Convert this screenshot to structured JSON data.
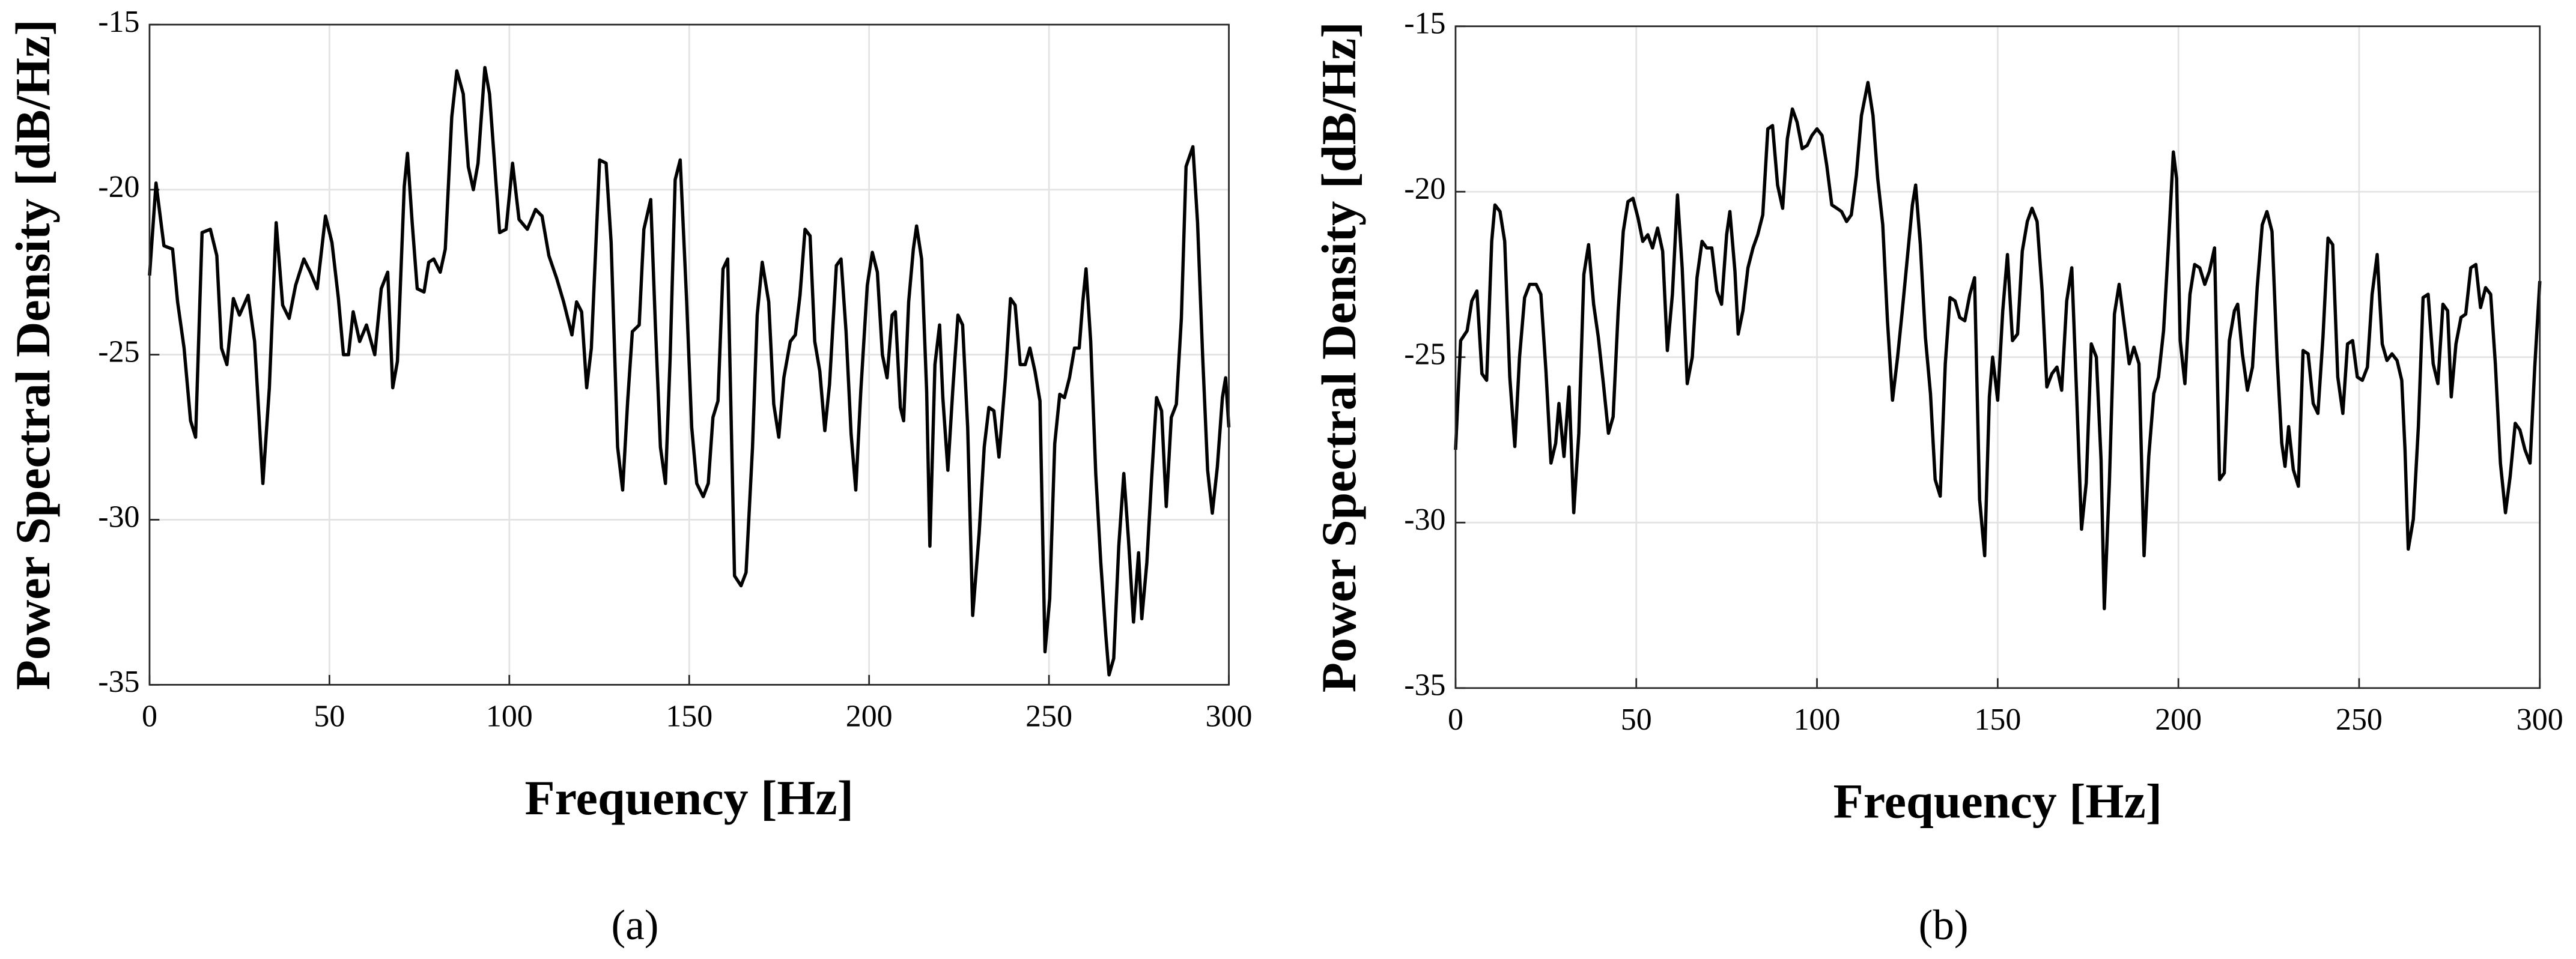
{
  "chart_data": [
    {
      "type": "line",
      "caption": "(a)",
      "xlabel": "Frequency [Hz]",
      "ylabel": "Power Spectral Density [dB/Hz]",
      "color": "#000000",
      "grid": true,
      "xlim": [
        0,
        300
      ],
      "xticks": [
        0,
        50,
        100,
        150,
        200,
        250,
        300
      ],
      "ylim": [
        -35,
        -15
      ],
      "yticks": [
        -35,
        -30,
        -25,
        -20,
        -15
      ],
      "x": [
        0,
        1.8,
        4,
        6.4,
        7.8,
        9.6,
        11.4,
        12.8,
        14.6,
        16.9,
        18.7,
        20,
        21.5,
        23.3,
        25,
        27.4,
        29.2,
        31.5,
        33.3,
        35.2,
        37,
        38.8,
        40.6,
        42.9,
        44.7,
        46.6,
        48.9,
        50.7,
        52.5,
        53.9,
        55.3,
        56.6,
        58.4,
        60.3,
        62.6,
        64.4,
        66.2,
        67.6,
        68.9,
        70.8,
        71.7,
        73,
        74.4,
        76.3,
        77.6,
        79,
        80.8,
        82.2,
        84,
        85.4,
        87.2,
        88.6,
        90,
        91.3,
        93.2,
        94.5,
        95.9,
        97.3,
        99.1,
        100.9,
        102.7,
        105,
        107.3,
        109.1,
        111,
        113.2,
        115.1,
        117.4,
        118.7,
        120.1,
        121.5,
        122.8,
        125.1,
        126.9,
        128.3,
        130.1,
        131.5,
        132.9,
        134.2,
        136.1,
        137.4,
        139.3,
        140.6,
        142,
        143.4,
        144.7,
        146.1,
        147.5,
        149.3,
        150.7,
        152.1,
        153.9,
        155.3,
        156.6,
        158,
        159.4,
        160.7,
        162.6,
        164.4,
        165.8,
        167.6,
        168.9,
        170.3,
        172.1,
        173.5,
        174.9,
        176.3,
        178.1,
        179.5,
        180.8,
        182.2,
        183.6,
        184.9,
        186.3,
        187.7,
        189,
        190.9,
        192.2,
        193.6,
        195,
        196.3,
        197.7,
        199.5,
        200.9,
        202.3,
        203.7,
        205,
        206.4,
        207.3,
        208.7,
        209.6,
        211,
        212.3,
        213.2,
        214.6,
        216,
        216.9,
        218.3,
        219.6,
        220.5,
        221.9,
        223.3,
        224.7,
        226,
        227.4,
        228.8,
        230.6,
        232,
        233.3,
        234.7,
        236.1,
        237.9,
        239.3,
        240.6,
        242,
        243.4,
        244.7,
        246.1,
        247.5,
        248.9,
        250.2,
        251.6,
        253,
        254.3,
        255.7,
        257.1,
        258.4,
        259.4,
        260.3,
        261.6,
        263,
        264.4,
        265.8,
        266.7,
        268,
        269.4,
        270.8,
        272.1,
        273.5,
        274.9,
        275.8,
        277.2,
        278.5,
        279.9,
        281.3,
        282.6,
        284,
        285.4,
        286.8,
        288.1,
        290,
        291.3,
        292.7,
        294.1,
        295.4,
        296.8,
        298.2,
        299.1,
        300
      ],
      "values": [
        -22.6,
        -19.8,
        -21.7,
        -21.8,
        -23.4,
        -24.8,
        -27,
        -27.5,
        -21.3,
        -21.2,
        -22,
        -24.8,
        -25.3,
        -23.3,
        -23.8,
        -23.2,
        -24.6,
        -28.9,
        -26,
        -21,
        -23.5,
        -23.9,
        -22.9,
        -22.1,
        -22.5,
        -23,
        -20.8,
        -21.6,
        -23.3,
        -25,
        -25,
        -23.7,
        -24.6,
        -24.1,
        -25,
        -23,
        -22.5,
        -26,
        -25.2,
        -19.9,
        -18.9,
        -21,
        -23,
        -23.1,
        -22.2,
        -22.1,
        -22.5,
        -21.8,
        -17.8,
        -16.4,
        -17.1,
        -19.3,
        -20,
        -19.2,
        -16.3,
        -17.1,
        -19.2,
        -21.3,
        -21.2,
        -19.2,
        -20.9,
        -21.2,
        -20.6,
        -20.8,
        -22,
        -22.7,
        -23.4,
        -24.4,
        -23.4,
        -23.7,
        -26,
        -24.8,
        -19.1,
        -19.2,
        -21.6,
        -27.8,
        -29.1,
        -26.4,
        -24.3,
        -24.1,
        -21.2,
        -20.3,
        -24.1,
        -27.8,
        -28.9,
        -25.1,
        -19.7,
        -19.1,
        -23.4,
        -27.2,
        -28.9,
        -29.3,
        -28.9,
        -26.9,
        -26.4,
        -22.4,
        -22.1,
        -31.7,
        -32,
        -31.6,
        -27.8,
        -23.8,
        -22.2,
        -23.4,
        -26.5,
        -27.5,
        -25.7,
        -24.6,
        -24.4,
        -23.2,
        -21.2,
        -21.4,
        -24.6,
        -25.5,
        -27.3,
        -25.9,
        -22.3,
        -22.1,
        -24.3,
        -27.4,
        -29.1,
        -26.1,
        -22.9,
        -21.9,
        -22.5,
        -25,
        -25.7,
        -23.8,
        -23.7,
        -26.6,
        -27,
        -23.4,
        -21.8,
        -21.1,
        -22.1,
        -26.1,
        -30.8,
        -25.3,
        -24.1,
        -26.3,
        -28.5,
        -26,
        -23.8,
        -24.1,
        -27.2,
        -32.9,
        -30.4,
        -27.8,
        -26.6,
        -26.7,
        -28.1,
        -25.7,
        -23.3,
        -23.5,
        -25.3,
        -25.3,
        -24.8,
        -25.5,
        -26.4,
        -34,
        -32.4,
        -27.7,
        -26.2,
        -26.3,
        -25.7,
        -24.8,
        -24.8,
        -23.4,
        -22.4,
        -24.6,
        -28.6,
        -31.3,
        -33.5,
        -34.7,
        -34.2,
        -30.8,
        -28.6,
        -30.6,
        -33.1,
        -31,
        -33,
        -31.3,
        -28.8,
        -26.3,
        -26.7,
        -29.6,
        -26.9,
        -26.5,
        -23.9,
        -19.3,
        -18.7,
        -21,
        -25,
        -28.5,
        -29.8,
        -28.4,
        -26.3,
        -25.7,
        -27.2
      ]
    },
    {
      "type": "line",
      "caption": "(b)",
      "xlabel": "Frequency [Hz]",
      "ylabel": "Power Spectral Density [dB/Hz]",
      "color": "#000000",
      "grid": true,
      "xlim": [
        0,
        300
      ],
      "xticks": [
        0,
        50,
        100,
        150,
        200,
        250,
        300
      ],
      "ylim": [
        -35,
        -15
      ],
      "yticks": [
        -35,
        -30,
        -25,
        -20,
        -15
      ],
      "x": [
        0,
        1.4,
        3.2,
        4.5,
        5.9,
        7.3,
        8.6,
        10,
        10.9,
        12.3,
        13.6,
        15,
        16.4,
        17.7,
        19.1,
        20.5,
        22.3,
        23.6,
        25,
        26.4,
        27.7,
        28.6,
        30,
        31.4,
        32.7,
        34.1,
        35.5,
        36.8,
        38.2,
        39.5,
        40.9,
        42.3,
        43.6,
        45,
        46.4,
        47.7,
        49.1,
        50.5,
        51.8,
        53.2,
        54.5,
        55.9,
        57.3,
        58.6,
        60,
        61.4,
        62.7,
        64.1,
        65.5,
        66.8,
        68.2,
        69.5,
        70.9,
        72.3,
        73.6,
        75,
        75.9,
        77.3,
        78.2,
        79.5,
        80.9,
        82.3,
        83.6,
        85,
        86.4,
        87.7,
        89.1,
        90.5,
        91.8,
        93.2,
        94.5,
        95.9,
        97.3,
        98.6,
        100,
        101.4,
        102.7,
        104.1,
        105.5,
        106.8,
        108.2,
        109.5,
        110.9,
        112.3,
        114.1,
        115.5,
        116.8,
        118.2,
        119.5,
        120.9,
        122.3,
        123.6,
        125,
        126.4,
        127.3,
        128.6,
        130,
        131.4,
        132.7,
        134.1,
        135.5,
        136.8,
        138.2,
        139.5,
        140.9,
        142.3,
        143.6,
        145,
        146.4,
        147.7,
        148.6,
        150,
        151.4,
        152.7,
        154.1,
        155.5,
        156.8,
        158.2,
        159.5,
        160.9,
        162.3,
        163.6,
        165,
        166.4,
        167.7,
        169.1,
        170.5,
        171.8,
        173.2,
        174.5,
        175.9,
        177.3,
        178.6,
        179.5,
        180.9,
        182.3,
        183.6,
        185,
        186.4,
        187.7,
        189.1,
        190.5,
        191.8,
        193.2,
        194.5,
        195.9,
        197.3,
        198.6,
        199.5,
        200.5,
        201.8,
        203.2,
        204.5,
        205.9,
        207.3,
        208.6,
        210,
        211.4,
        212.7,
        214.1,
        215.5,
        216.4,
        217.7,
        219.1,
        220.5,
        221.8,
        223.2,
        224.5,
        225.9,
        227.3,
        228.6,
        229.5,
        230.5,
        231.8,
        233.2,
        234.5,
        235.9,
        237.3,
        238.6,
        240,
        241.4,
        242.7,
        244.1,
        245.5,
        246.8,
        248.2,
        249.5,
        250.9,
        252.3,
        253.6,
        255,
        256.4,
        257.7,
        259.1,
        260.5,
        261.8,
        262.7,
        263.6,
        265,
        266.4,
        267.7,
        269.1,
        270.5,
        271.8,
        273.2,
        274.5,
        275.5,
        276.8,
        278.2,
        279.5,
        280.9,
        282.3,
        283.6,
        285,
        286.4,
        287.7,
        289.1,
        290.5,
        291.8,
        293.2,
        294.5,
        295.9,
        297.3,
        298.6,
        300
      ],
      "values": [
        -27.8,
        -24.5,
        -24.2,
        -23.3,
        -23,
        -25.5,
        -25.7,
        -21.5,
        -20.4,
        -20.6,
        -21.5,
        -25.6,
        -27.7,
        -25,
        -23.2,
        -22.8,
        -22.8,
        -23.1,
        -25.4,
        -28.2,
        -27.6,
        -26.4,
        -28,
        -25.9,
        -29.7,
        -27.3,
        -22.5,
        -21.6,
        -23.4,
        -24.4,
        -25.8,
        -27.3,
        -26.8,
        -23.6,
        -21.2,
        -20.3,
        -20.2,
        -20.8,
        -21.5,
        -21.3,
        -21.7,
        -21.1,
        -21.8,
        -24.8,
        -23.1,
        -20.1,
        -22.3,
        -25.8,
        -25,
        -22.6,
        -21.5,
        -21.7,
        -21.7,
        -23,
        -23.4,
        -21.3,
        -20.6,
        -22.4,
        -24.3,
        -23.6,
        -22.3,
        -21.7,
        -21.3,
        -20.7,
        -18.1,
        -18,
        -19.8,
        -20.5,
        -18.4,
        -17.5,
        -17.9,
        -18.7,
        -18.6,
        -18.3,
        -18.1,
        -18.3,
        -19.2,
        -20.4,
        -20.5,
        -20.6,
        -20.9,
        -20.7,
        -19.5,
        -17.7,
        -16.7,
        -17.7,
        -19.6,
        -21,
        -23.9,
        -26.3,
        -25,
        -23.6,
        -22,
        -20.4,
        -19.8,
        -21.6,
        -24.4,
        -26.1,
        -28.7,
        -29.2,
        -25.2,
        -23.2,
        -23.3,
        -23.8,
        -23.9,
        -23.1,
        -22.6,
        -29.3,
        -31,
        -26.2,
        -25,
        -26.3,
        -23.6,
        -21.9,
        -24.5,
        -24.3,
        -21.8,
        -20.9,
        -20.5,
        -20.9,
        -23,
        -25.9,
        -25.5,
        -25.3,
        -26,
        -23.3,
        -22.3,
        -26,
        -30.2,
        -28.8,
        -24.6,
        -25,
        -28.1,
        -32.6,
        -28.8,
        -23.7,
        -22.8,
        -24,
        -25.2,
        -24.7,
        -25.2,
        -31,
        -28,
        -26.1,
        -25.6,
        -24.2,
        -21.5,
        -18.8,
        -19.6,
        -24.5,
        -25.8,
        -23.1,
        -22.2,
        -22.3,
        -22.8,
        -22.4,
        -21.7,
        -28.7,
        -28.5,
        -24.5,
        -23.6,
        -23.4,
        -24.9,
        -26,
        -25.3,
        -22.9,
        -21,
        -20.6,
        -21.2,
        -25,
        -27.6,
        -28.3,
        -27.1,
        -28.4,
        -28.9,
        -24.8,
        -24.9,
        -26.4,
        -26.7,
        -24.4,
        -21.4,
        -21.6,
        -25.6,
        -26.7,
        -24.6,
        -24.5,
        -25.6,
        -25.7,
        -25.3,
        -23.1,
        -21.9,
        -24.6,
        -25.1,
        -24.9,
        -25.1,
        -25.7,
        -27.8,
        -30.8,
        -29.9,
        -27.1,
        -23.2,
        -23.1,
        -25.2,
        -25.8,
        -23.4,
        -23.6,
        -26.2,
        -24.6,
        -23.8,
        -23.7,
        -22.3,
        -22.2,
        -23.5,
        -22.9,
        -23.1,
        -25.2,
        -28.2,
        -29.7,
        -28.6,
        -27,
        -27.2,
        -27.8,
        -28.2,
        -25.3,
        -22.7
      ]
    }
  ]
}
